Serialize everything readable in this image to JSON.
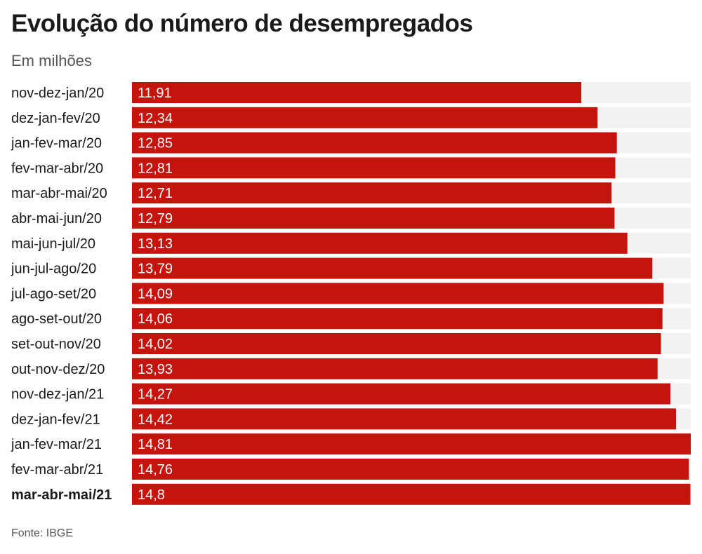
{
  "chart_data": {
    "type": "bar",
    "orientation": "horizontal",
    "title": "Evolução do número de desempregados",
    "subtitle": "Em milhões",
    "source": "Fonte: IBGE",
    "xlim": [
      0,
      14.81
    ],
    "colors": {
      "bar": "#c4140c",
      "track": "#f2f2f2"
    },
    "categories": [
      "nov-dez-jan/20",
      "dez-jan-fev/20",
      "jan-fev-mar/20",
      "fev-mar-abr/20",
      "mar-abr-mai/20",
      "abr-mai-jun/20",
      "mai-jun-jul/20",
      "jun-jul-ago/20",
      "jul-ago-set/20",
      "ago-set-out/20",
      "set-out-nov/20",
      "out-nov-dez/20",
      "nov-dez-jan/21",
      "dez-jan-fev/21",
      "jan-fev-mar/21",
      "fev-mar-abr/21",
      "mar-abr-mai/21"
    ],
    "values": [
      11.91,
      12.34,
      12.85,
      12.81,
      12.71,
      12.79,
      13.13,
      13.79,
      14.09,
      14.06,
      14.02,
      13.93,
      14.27,
      14.42,
      14.81,
      14.76,
      14.8
    ],
    "value_labels": [
      "11,91",
      "12,34",
      "12,85",
      "12,81",
      "12,71",
      "12,79",
      "13,13",
      "13,79",
      "14,09",
      "14,06",
      "14,02",
      "13,93",
      "14,27",
      "14,42",
      "14,81",
      "14,76",
      "14,8"
    ],
    "highlighted_category": "mar-abr-mai/21"
  }
}
